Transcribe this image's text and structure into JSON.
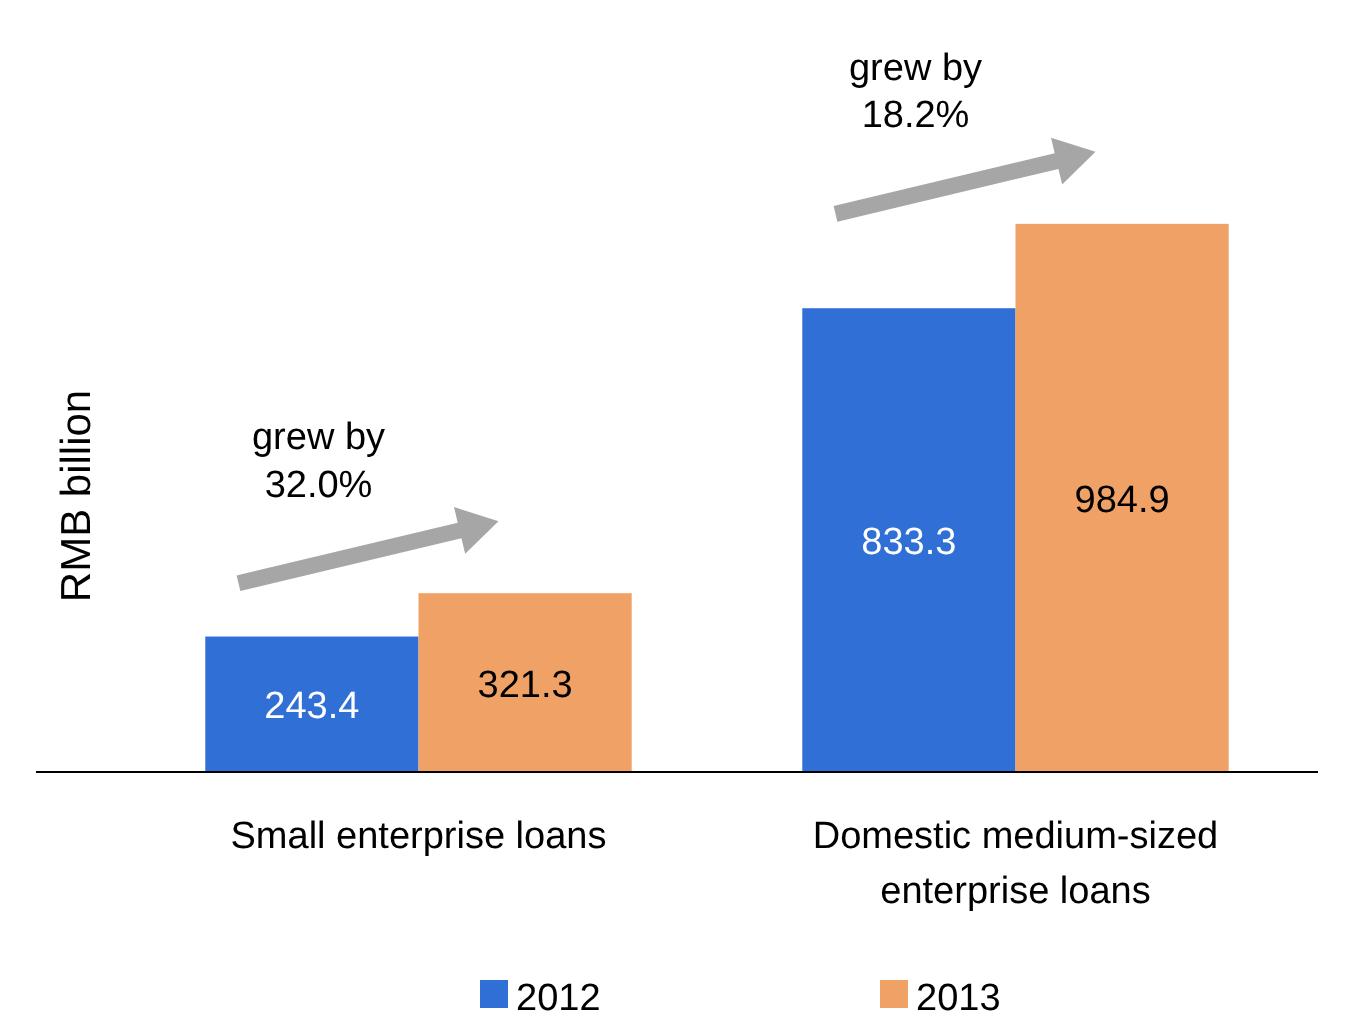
{
  "chart_data": {
    "type": "bar",
    "ylabel": "RMB billion",
    "categories": [
      "Small enterprise loans",
      "Domestic medium-sized enterprise loans"
    ],
    "series": [
      {
        "name": "2012",
        "color": "#2f6fd6",
        "values": [
          243.4,
          833.3
        ]
      },
      {
        "name": "2013",
        "color": "#f0a266",
        "values": [
          321.3,
          984.9
        ]
      }
    ],
    "data_labels": true,
    "legend": "bottom",
    "annotations": [
      {
        "text": "grew by 32.0%",
        "x": "Small enterprise loans",
        "y": 321.3
      },
      {
        "text": "grew by 18.2%",
        "x": "Domestic medium-sized enterprise loans",
        "y": 984.9
      }
    ]
  }
}
